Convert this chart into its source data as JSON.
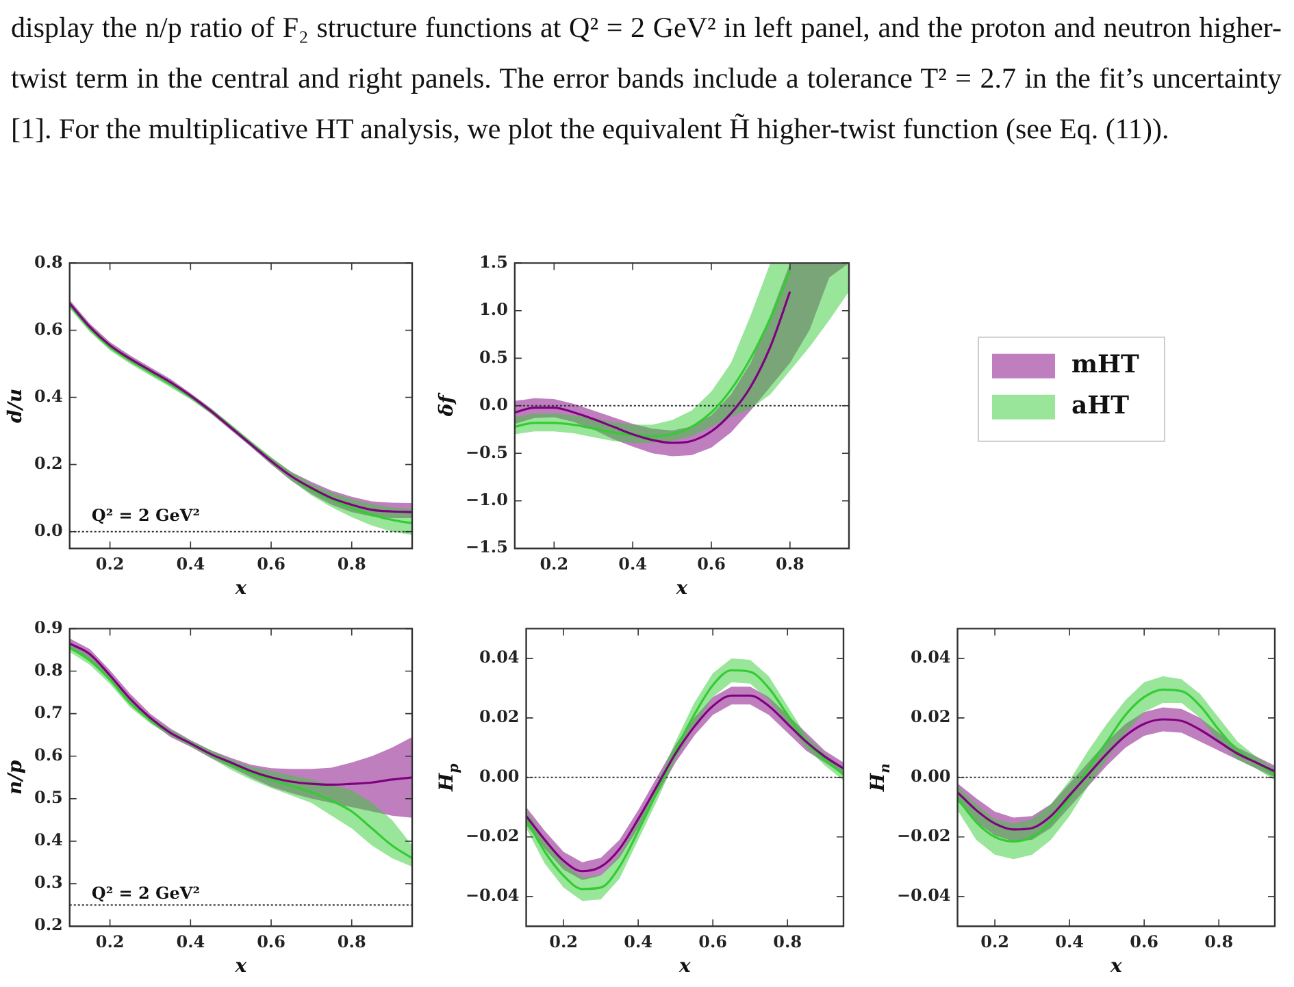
{
  "chart_data": [
    {
      "type": "other",
      "annotations": [
        "display the n/p ratio of F₂ structure functions at Q² = 2 GeV² in left panel, and the proton and neutron higher-twist term in the central and right panels. The error bands include a tolerance T² = 2.7 in the fit’s uncertainty [1]. For the multiplicative HT analysis, we plot the equivalent H̃ higher-twist function (see Eq. (11))."
      ]
    },
    {
      "type": "line",
      "xlabel": "x",
      "ylabel": "d/u",
      "annotations": [
        "Q² = 2 GeV²"
      ],
      "x": [
        0.1,
        0.15,
        0.2,
        0.25,
        0.3,
        0.35,
        0.4,
        0.45,
        0.5,
        0.55,
        0.6,
        0.65,
        0.7,
        0.75,
        0.8,
        0.85,
        0.9,
        0.95
      ],
      "xlim": [
        0.1,
        0.95
      ],
      "xticks": [
        0.2,
        0.4,
        0.6,
        0.8
      ],
      "ylim": [
        -0.05,
        0.8
      ],
      "yticks": [
        {
          "value": 0,
          "label": "0.0"
        },
        0.2,
        0.4,
        0.6,
        0.8
      ],
      "ref_lines": [
        {
          "axis": "y",
          "value": 0,
          "line_style": "dotted"
        }
      ],
      "marker": "none",
      "line_style": "solid",
      "grid": false,
      "series": [
        {
          "color": "#800080",
          "values": [
            0.68,
            0.61,
            0.555,
            0.515,
            0.48,
            0.445,
            0.405,
            0.36,
            0.31,
            0.26,
            0.21,
            0.165,
            0.13,
            0.1,
            0.08,
            0.065,
            0.06,
            0.058
          ],
          "upper": [
            0.69,
            0.62,
            0.565,
            0.525,
            0.49,
            0.455,
            0.413,
            0.368,
            0.318,
            0.268,
            0.22,
            0.178,
            0.148,
            0.122,
            0.104,
            0.09,
            0.086,
            0.085
          ],
          "lower": [
            0.67,
            0.6,
            0.545,
            0.505,
            0.47,
            0.435,
            0.397,
            0.352,
            0.302,
            0.252,
            0.2,
            0.152,
            0.112,
            0.08,
            0.058,
            0.045,
            0.04,
            0.04
          ]
        },
        {
          "color": "#33cc33",
          "values": [
            0.675,
            0.605,
            0.55,
            0.51,
            0.475,
            0.44,
            0.402,
            0.36,
            0.312,
            0.262,
            0.212,
            0.165,
            0.125,
            0.095,
            0.07,
            0.05,
            0.035,
            0.025
          ],
          "upper": [
            0.685,
            0.615,
            0.56,
            0.52,
            0.485,
            0.45,
            0.41,
            0.368,
            0.32,
            0.27,
            0.222,
            0.178,
            0.142,
            0.117,
            0.097,
            0.082,
            0.072,
            0.068
          ],
          "lower": [
            0.665,
            0.595,
            0.54,
            0.5,
            0.465,
            0.43,
            0.394,
            0.352,
            0.304,
            0.254,
            0.202,
            0.152,
            0.108,
            0.073,
            0.043,
            0.018,
            0.0,
            -0.01
          ]
        }
      ]
    },
    {
      "type": "line",
      "xlabel": "x",
      "ylabel": "δf",
      "legend": "right",
      "x": [
        0.1,
        0.15,
        0.2,
        0.25,
        0.3,
        0.35,
        0.4,
        0.45,
        0.5,
        0.55,
        0.6,
        0.65,
        0.7,
        0.75,
        0.8,
        0.85,
        0.9,
        0.95
      ],
      "xlim": [
        0.1,
        0.95
      ],
      "xticks": [
        0.2,
        0.4,
        0.6,
        0.8
      ],
      "ylim": [
        -1.5,
        1.5
      ],
      "yticks": [
        {
          "value": -1.5,
          "label": "−1.5"
        },
        {
          "value": -1,
          "label": "−1.0"
        },
        {
          "value": -0.5,
          "label": "−0.5"
        },
        {
          "value": 0,
          "label": "0.0"
        },
        0.5,
        {
          "value": 1,
          "label": "1.0"
        },
        1.5
      ],
      "ref_lines": [
        {
          "axis": "y",
          "value": 0,
          "line_style": "dotted"
        }
      ],
      "marker": "none",
      "line_style": "solid",
      "grid": false,
      "series": [
        {
          "name": "mHT",
          "color": "#800080",
          "values": [
            -0.07,
            -0.02,
            -0.02,
            -0.07,
            -0.14,
            -0.22,
            -0.3,
            -0.36,
            -0.39,
            -0.37,
            -0.27,
            -0.08,
            0.2,
            0.62,
            1.2,
            null,
            null,
            null
          ],
          "upper": [
            0.05,
            0.08,
            0.07,
            0.02,
            -0.05,
            -0.12,
            -0.19,
            -0.24,
            -0.26,
            -0.22,
            -0.1,
            0.12,
            0.45,
            0.95,
            1.5,
            1.5,
            1.5,
            1.5
          ],
          "lower": [
            -0.19,
            -0.13,
            -0.12,
            -0.17,
            -0.25,
            -0.35,
            -0.43,
            -0.5,
            -0.53,
            -0.52,
            -0.44,
            -0.28,
            -0.05,
            0.2,
            0.45,
            0.8,
            1.35,
            1.5
          ]
        },
        {
          "name": "aHT",
          "color": "#33cc33",
          "values": [
            -0.22,
            -0.18,
            -0.18,
            -0.2,
            -0.24,
            -0.28,
            -0.31,
            -0.32,
            -0.3,
            -0.22,
            -0.07,
            0.17,
            0.5,
            0.92,
            1.42,
            null,
            null,
            null
          ],
          "upper": [
            -0.12,
            -0.08,
            -0.08,
            -0.1,
            -0.13,
            -0.17,
            -0.2,
            -0.2,
            -0.15,
            -0.05,
            0.15,
            0.45,
            0.95,
            1.5,
            1.5,
            1.5,
            1.5,
            1.5
          ],
          "lower": [
            -0.3,
            -0.27,
            -0.27,
            -0.29,
            -0.33,
            -0.37,
            -0.39,
            -0.39,
            -0.37,
            -0.32,
            -0.22,
            -0.12,
            -0.03,
            0.12,
            0.37,
            0.62,
            0.9,
            1.2
          ]
        }
      ]
    },
    {
      "type": "line",
      "xlabel": "x",
      "ylabel": "n/p",
      "annotations": [
        "Q² = 2 GeV²"
      ],
      "x": [
        0.1,
        0.15,
        0.2,
        0.25,
        0.3,
        0.35,
        0.4,
        0.45,
        0.5,
        0.55,
        0.6,
        0.65,
        0.7,
        0.75,
        0.8,
        0.85,
        0.9,
        0.95
      ],
      "xlim": [
        0.1,
        0.95
      ],
      "xticks": [
        0.2,
        0.4,
        0.6,
        0.8
      ],
      "ylim": [
        0.2,
        0.9
      ],
      "yticks": [
        0.2,
        0.3,
        0.4,
        0.5,
        0.6,
        0.7,
        0.8,
        0.9
      ],
      "ref_lines": [
        {
          "axis": "y",
          "value": 0.25,
          "line_style": "dotted"
        }
      ],
      "marker": "none",
      "line_style": "solid",
      "grid": false,
      "series": [
        {
          "color": "#800080",
          "values": [
            0.865,
            0.84,
            0.79,
            0.735,
            0.69,
            0.655,
            0.63,
            0.605,
            0.585,
            0.565,
            0.55,
            0.54,
            0.535,
            0.533,
            0.535,
            0.538,
            0.545,
            0.55
          ],
          "upper": [
            0.877,
            0.852,
            0.802,
            0.747,
            0.7,
            0.665,
            0.638,
            0.614,
            0.596,
            0.58,
            0.572,
            0.57,
            0.57,
            0.573,
            0.585,
            0.6,
            0.62,
            0.645
          ],
          "lower": [
            0.853,
            0.828,
            0.778,
            0.723,
            0.68,
            0.645,
            0.622,
            0.596,
            0.574,
            0.55,
            0.528,
            0.513,
            0.5,
            0.49,
            0.48,
            0.47,
            0.46,
            0.455
          ]
        },
        {
          "color": "#33cc33",
          "values": [
            0.855,
            0.825,
            0.78,
            0.725,
            0.685,
            0.655,
            0.63,
            0.605,
            0.58,
            0.56,
            0.545,
            0.53,
            0.515,
            0.495,
            0.47,
            0.43,
            0.39,
            0.36
          ],
          "upper": [
            0.865,
            0.835,
            0.79,
            0.735,
            0.693,
            0.662,
            0.637,
            0.614,
            0.592,
            0.575,
            0.565,
            0.555,
            0.545,
            0.533,
            0.52,
            0.49,
            0.45,
            0.39
          ],
          "lower": [
            0.845,
            0.815,
            0.77,
            0.715,
            0.677,
            0.648,
            0.623,
            0.596,
            0.568,
            0.545,
            0.525,
            0.508,
            0.49,
            0.46,
            0.43,
            0.39,
            0.36,
            0.34
          ]
        }
      ]
    },
    {
      "type": "line",
      "xlabel": "x",
      "ylabel": "H$_{p}$",
      "x": [
        0.1,
        0.15,
        0.2,
        0.25,
        0.3,
        0.35,
        0.4,
        0.45,
        0.5,
        0.55,
        0.6,
        0.65,
        0.7,
        0.75,
        0.8,
        0.85,
        0.9,
        0.95
      ],
      "xlim": [
        0.1,
        0.95
      ],
      "xticks": [
        0.2,
        0.4,
        0.6,
        0.8
      ],
      "ylim": [
        -0.05,
        0.05
      ],
      "yticks": [
        {
          "value": -0.04,
          "label": "−0.04"
        },
        {
          "value": -0.02,
          "label": "−0.02"
        },
        {
          "value": 0,
          "label": "0.00"
        },
        {
          "value": 0.02,
          "label": "0.02"
        },
        {
          "value": 0.04,
          "label": "0.04"
        }
      ],
      "ref_lines": [
        {
          "axis": "y",
          "value": 0,
          "line_style": "dotted"
        }
      ],
      "marker": "none",
      "line_style": "solid",
      "grid": false,
      "series": [
        {
          "color": "#800080",
          "values": [
            -0.013,
            -0.021,
            -0.028,
            -0.0315,
            -0.03,
            -0.024,
            -0.014,
            -0.003,
            0.008,
            0.017,
            0.024,
            0.0275,
            0.0275,
            0.024,
            0.018,
            0.012,
            0.007,
            0.003
          ],
          "upper": [
            -0.01,
            -0.018,
            -0.025,
            -0.0285,
            -0.027,
            -0.021,
            -0.011,
            0,
            0.011,
            0.02,
            0.027,
            0.0305,
            0.0305,
            0.027,
            0.021,
            0.015,
            0.009,
            0.005
          ],
          "lower": [
            -0.016,
            -0.024,
            -0.031,
            -0.0345,
            -0.033,
            -0.027,
            -0.017,
            -0.006,
            0.005,
            0.014,
            0.021,
            0.0245,
            0.0245,
            0.021,
            0.015,
            0.009,
            0.005,
            0.001
          ]
        },
        {
          "color": "#33cc33",
          "values": [
            -0.014,
            -0.025,
            -0.033,
            -0.0375,
            -0.037,
            -0.03,
            -0.018,
            -0.005,
            0.009,
            0.021,
            0.031,
            0.036,
            0.0355,
            0.03,
            0.021,
            0.012,
            0.006,
            0.001
          ],
          "upper": [
            -0.011,
            -0.021,
            -0.029,
            -0.0335,
            -0.033,
            -0.026,
            -0.015,
            -0.002,
            0.012,
            0.025,
            0.035,
            0.04,
            0.0395,
            0.034,
            0.024,
            0.014,
            0.008,
            0.003
          ],
          "lower": [
            -0.017,
            -0.029,
            -0.037,
            -0.0415,
            -0.041,
            -0.034,
            -0.021,
            -0.008,
            0.006,
            0.017,
            0.027,
            0.032,
            0.0315,
            0.026,
            0.018,
            0.01,
            0.004,
            -0.001
          ]
        }
      ]
    },
    {
      "type": "line",
      "xlabel": "x",
      "ylabel": "H$_{n}$",
      "x": [
        0.1,
        0.15,
        0.2,
        0.25,
        0.3,
        0.35,
        0.4,
        0.45,
        0.5,
        0.55,
        0.6,
        0.65,
        0.7,
        0.75,
        0.8,
        0.85,
        0.9,
        0.95
      ],
      "xlim": [
        0.1,
        0.95
      ],
      "xticks": [
        0.2,
        0.4,
        0.6,
        0.8
      ],
      "ylim": [
        -0.05,
        0.05
      ],
      "yticks": [
        {
          "value": -0.04,
          "label": "−0.04"
        },
        {
          "value": -0.02,
          "label": "−0.02"
        },
        {
          "value": 0,
          "label": "0.00"
        },
        {
          "value": 0.02,
          "label": "0.02"
        },
        {
          "value": 0.04,
          "label": "0.04"
        }
      ],
      "ref_lines": [
        {
          "axis": "y",
          "value": 0,
          "line_style": "dotted"
        }
      ],
      "marker": "none",
      "line_style": "solid",
      "grid": false,
      "series": [
        {
          "color": "#800080",
          "values": [
            -0.005,
            -0.011,
            -0.0155,
            -0.0175,
            -0.017,
            -0.013,
            -0.006,
            0.001,
            0.008,
            0.014,
            0.018,
            0.0195,
            0.019,
            0.016,
            0.012,
            0.008,
            0.005,
            0.002
          ],
          "upper": [
            -0.002,
            -0.007,
            -0.0115,
            -0.0135,
            -0.013,
            -0.009,
            -0.002,
            0.005,
            0.012,
            0.018,
            0.022,
            0.0235,
            0.023,
            0.02,
            0.015,
            0.01,
            0.007,
            0.004
          ],
          "lower": [
            -0.008,
            -0.015,
            -0.0195,
            -0.0215,
            -0.021,
            -0.017,
            -0.01,
            -0.003,
            0.004,
            0.01,
            0.014,
            0.0155,
            0.015,
            0.012,
            0.009,
            0.006,
            0.003,
            0
          ]
        },
        {
          "color": "#33cc33",
          "values": [
            -0.007,
            -0.015,
            -0.02,
            -0.0215,
            -0.02,
            -0.015,
            -0.007,
            0.003,
            0.012,
            0.021,
            0.027,
            0.0295,
            0.029,
            0.024,
            0.016,
            0.009,
            0.005,
            0.001
          ],
          "upper": [
            -0.003,
            -0.009,
            -0.014,
            -0.0155,
            -0.014,
            -0.009,
            -0.001,
            0.009,
            0.018,
            0.026,
            0.032,
            0.034,
            0.033,
            0.028,
            0.02,
            0.012,
            0.007,
            0.003
          ],
          "lower": [
            -0.011,
            -0.021,
            -0.026,
            -0.0275,
            -0.026,
            -0.021,
            -0.013,
            -0.003,
            0.006,
            0.015,
            0.022,
            0.025,
            0.025,
            0.02,
            0.012,
            0.006,
            0.003,
            -0.001
          ]
        }
      ]
    }
  ]
}
